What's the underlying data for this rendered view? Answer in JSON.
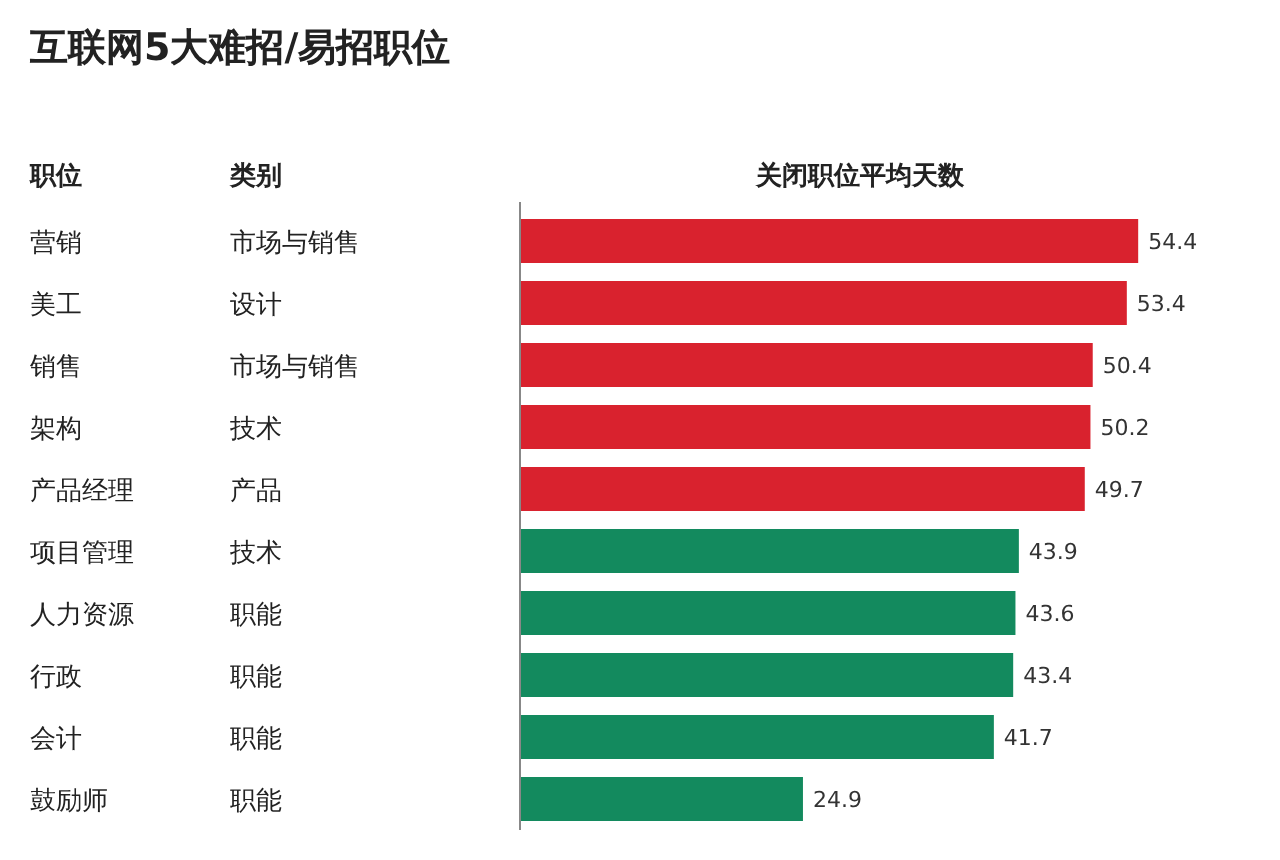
{
  "chart_data": {
    "type": "bar",
    "orientation": "horizontal",
    "title": "互联网5大难招/易招职位",
    "xlabel": "关闭职位平均天数",
    "categories": [
      "营销",
      "美工",
      "销售",
      "架构",
      "产品经理",
      "项目管理",
      "人力资源",
      "行政",
      "会计",
      "鼓励师"
    ],
    "values": [
      54.4,
      53.4,
      50.4,
      50.2,
      49.7,
      43.9,
      43.6,
      43.4,
      41.7,
      24.9
    ],
    "colors": [
      "#d9222e",
      "#d9222e",
      "#d9222e",
      "#d9222e",
      "#d9222e",
      "#138a5e",
      "#138a5e",
      "#138a5e",
      "#138a5e",
      "#138a5e"
    ],
    "data_labels": true,
    "annotations": [
      "职位",
      "类别",
      "市场与销售",
      "设计",
      "市场与销售",
      "技术",
      "产品",
      "技术",
      "职能",
      "职能",
      "职能",
      "职能"
    ]
  }
}
